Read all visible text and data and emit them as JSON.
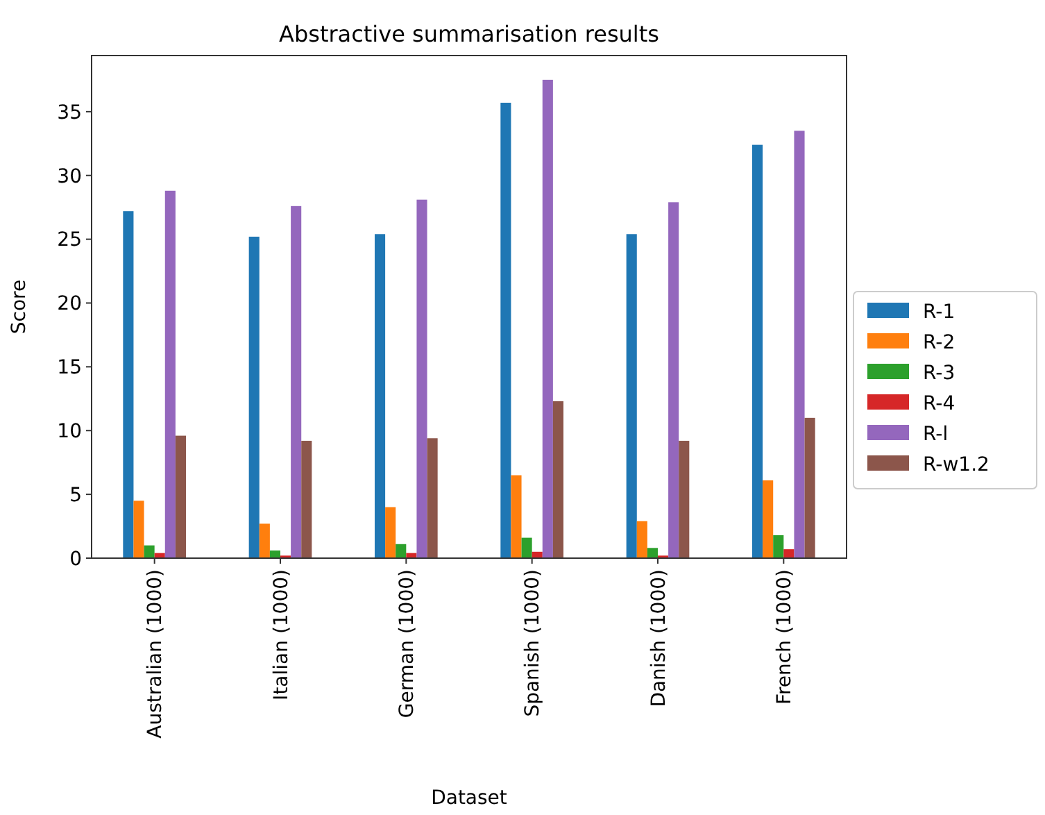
{
  "chart_data": {
    "type": "bar",
    "title": "Abstractive summarisation results",
    "xlabel": "Dataset",
    "ylabel": "Score",
    "categories": [
      "Australian (1000)",
      "Italian (1000)",
      "German (1000)",
      "Spanish (1000)",
      "Danish (1000)",
      "French (1000)"
    ],
    "series": [
      {
        "name": "R-1",
        "color": "#1f77b4",
        "values": [
          27.2,
          25.2,
          25.4,
          35.7,
          25.4,
          32.4
        ]
      },
      {
        "name": "R-2",
        "color": "#ff7f0e",
        "values": [
          4.5,
          2.7,
          4.0,
          6.5,
          2.9,
          6.1
        ]
      },
      {
        "name": "R-3",
        "color": "#2ca02c",
        "values": [
          1.0,
          0.6,
          1.1,
          1.6,
          0.8,
          1.8
        ]
      },
      {
        "name": "R-4",
        "color": "#d62728",
        "values": [
          0.4,
          0.2,
          0.4,
          0.5,
          0.2,
          0.7
        ]
      },
      {
        "name": "R-l",
        "color": "#9467bd",
        "values": [
          28.8,
          27.6,
          28.1,
          37.5,
          27.9,
          33.5
        ]
      },
      {
        "name": "R-w1.2",
        "color": "#8c564b",
        "values": [
          9.6,
          9.2,
          9.4,
          12.3,
          9.2,
          11.0
        ]
      }
    ],
    "ylim": [
      0,
      39.4
    ],
    "yticks": [
      0,
      5,
      10,
      15,
      20,
      25,
      30,
      35
    ],
    "grid": false,
    "legend": "right"
  }
}
